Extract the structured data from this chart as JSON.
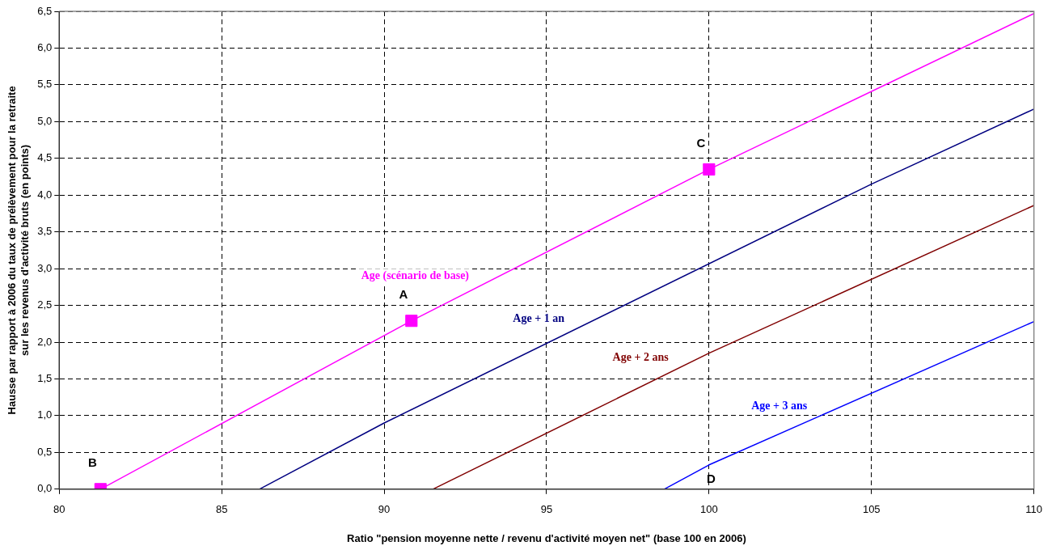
{
  "chart_data": {
    "type": "line",
    "xlabel": "Ratio \"pension moyenne nette / revenu d'activité moyen net\" (base 100 en 2006)",
    "ylabel": "Hausse par rapport à 2006 du taux de prélèvement pour la retraite\nsur les revenus d'activité bruts (en points)",
    "xlim": [
      80,
      110
    ],
    "xticks": [
      80,
      85,
      90,
      95,
      100,
      105,
      110
    ],
    "ylim": [
      0,
      6.5
    ],
    "yticks": [
      {
        "value": 0,
        "label": "0,0"
      },
      {
        "value": 0.5,
        "label": "0,5"
      },
      {
        "value": 1,
        "label": "1,0"
      },
      {
        "value": 1.5,
        "label": "1,5"
      },
      {
        "value": 2,
        "label": "2,0"
      },
      {
        "value": 2.5,
        "label": "2,5"
      },
      {
        "value": 3,
        "label": "3,0"
      },
      {
        "value": 3.5,
        "label": "3,5"
      },
      {
        "value": 4,
        "label": "4,0"
      },
      {
        "value": 4.5,
        "label": "4,5"
      },
      {
        "value": 5,
        "label": "5,0"
      },
      {
        "value": 5.5,
        "label": "5,5"
      },
      {
        "value": 6,
        "label": "6,0"
      },
      {
        "value": 6.5,
        "label": "6,5"
      }
    ],
    "grid": true,
    "legend": false,
    "marker": "none",
    "line_style": "solid",
    "series": [
      {
        "type": "line",
        "name": "Age (scénario de base)",
        "color": "#ff00ff",
        "x": [
          81.27,
          90.84,
          100,
          110
        ],
        "values": [
          0,
          2.29,
          4.35,
          6.47
        ]
      },
      {
        "type": "line",
        "name": "Age + 1 an",
        "color": "#000080",
        "x": [
          86.16,
          90,
          105,
          110
        ],
        "values": [
          0,
          0.9,
          4.15,
          5.17
        ]
      },
      {
        "type": "line",
        "name": "Age + 2 ans",
        "color": "#800000",
        "x": [
          91.5,
          100,
          110
        ],
        "values": [
          0,
          1.85,
          3.86
        ]
      },
      {
        "type": "line",
        "name": "Age + 3 ans",
        "color": "#0000ff",
        "x": [
          98.62,
          100,
          110
        ],
        "values": [
          0,
          0.33,
          2.28
        ]
      },
      {
        "type": "scatter",
        "color": "#ff00ff",
        "marker": "square",
        "x": [
          81.27,
          90.84,
          100
        ],
        "values": [
          0,
          2.29,
          4.35
        ]
      }
    ],
    "annotations": [
      {
        "text": "A",
        "x": 90.84,
        "y": 2.29
      },
      {
        "text": "B",
        "x": 81.27,
        "y": 0
      },
      {
        "text": "C",
        "x": 100,
        "y": 4.35
      },
      "D"
    ]
  }
}
